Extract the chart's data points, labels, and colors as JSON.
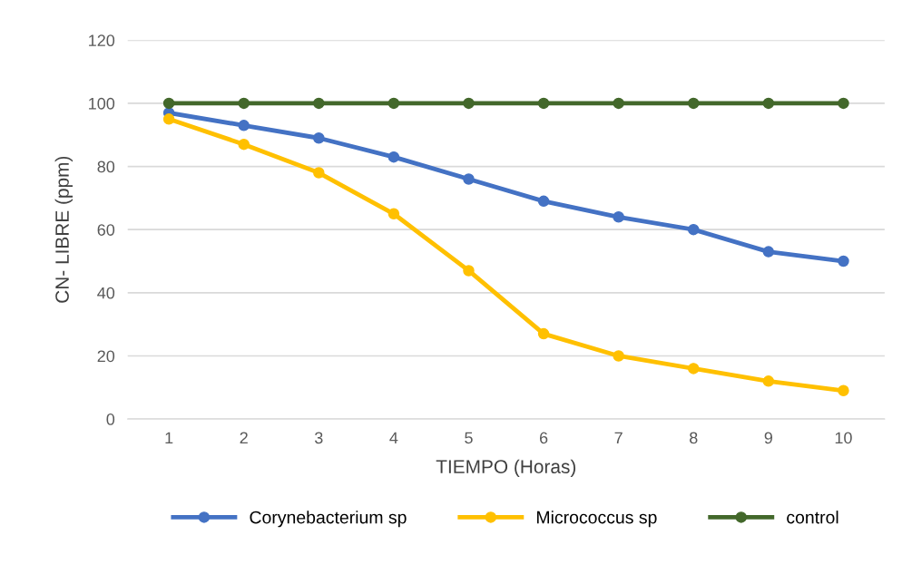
{
  "chart_data": {
    "type": "line",
    "xlabel": "TIEMPO (Horas)",
    "ylabel": "CN- LIBRE (ppm)",
    "categories": [
      "1",
      "2",
      "3",
      "4",
      "5",
      "6",
      "7",
      "8",
      "9",
      "10"
    ],
    "series": [
      {
        "name": "Corynebacterium sp",
        "color": "#4472c4",
        "values": [
          97,
          93,
          89,
          83,
          76,
          69,
          64,
          60,
          53,
          50
        ]
      },
      {
        "name": "Micrococcus sp",
        "color": "#ffc000",
        "values": [
          95,
          87,
          78,
          65,
          47,
          27,
          20,
          16,
          12,
          9
        ]
      },
      {
        "name": "control",
        "color": "#43682b",
        "values": [
          100,
          100,
          100,
          100,
          100,
          100,
          100,
          100,
          100,
          100
        ]
      }
    ],
    "ylim": [
      0,
      120
    ],
    "yticks": [
      0,
      20,
      40,
      60,
      80,
      100,
      120
    ],
    "grid": "y",
    "legend": "bottom",
    "marker": "circle",
    "line_style": "solid"
  }
}
